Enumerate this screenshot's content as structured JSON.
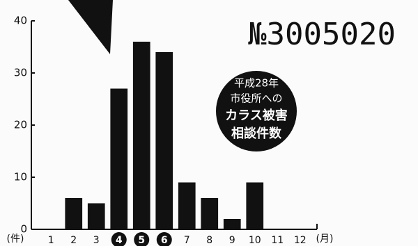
{
  "chart_data": {
    "type": "bar",
    "stamp": "№3005020",
    "annotation": [
      "平成28年",
      "市役所への",
      "カラス被害",
      "相談件数"
    ],
    "ylabel": "(件)",
    "xlabel": "(月)",
    "categories": [
      "1",
      "2",
      "3",
      "4",
      "5",
      "6",
      "7",
      "8",
      "9",
      "10",
      "11",
      "12"
    ],
    "values": [
      0,
      6,
      5,
      27,
      36,
      34,
      9,
      6,
      2,
      9,
      0,
      0
    ],
    "highlight_indices": [
      3,
      4,
      5
    ],
    "color": "#111111",
    "ylim": [
      0,
      40
    ],
    "yticks": [
      0,
      10,
      20,
      30,
      40
    ]
  }
}
